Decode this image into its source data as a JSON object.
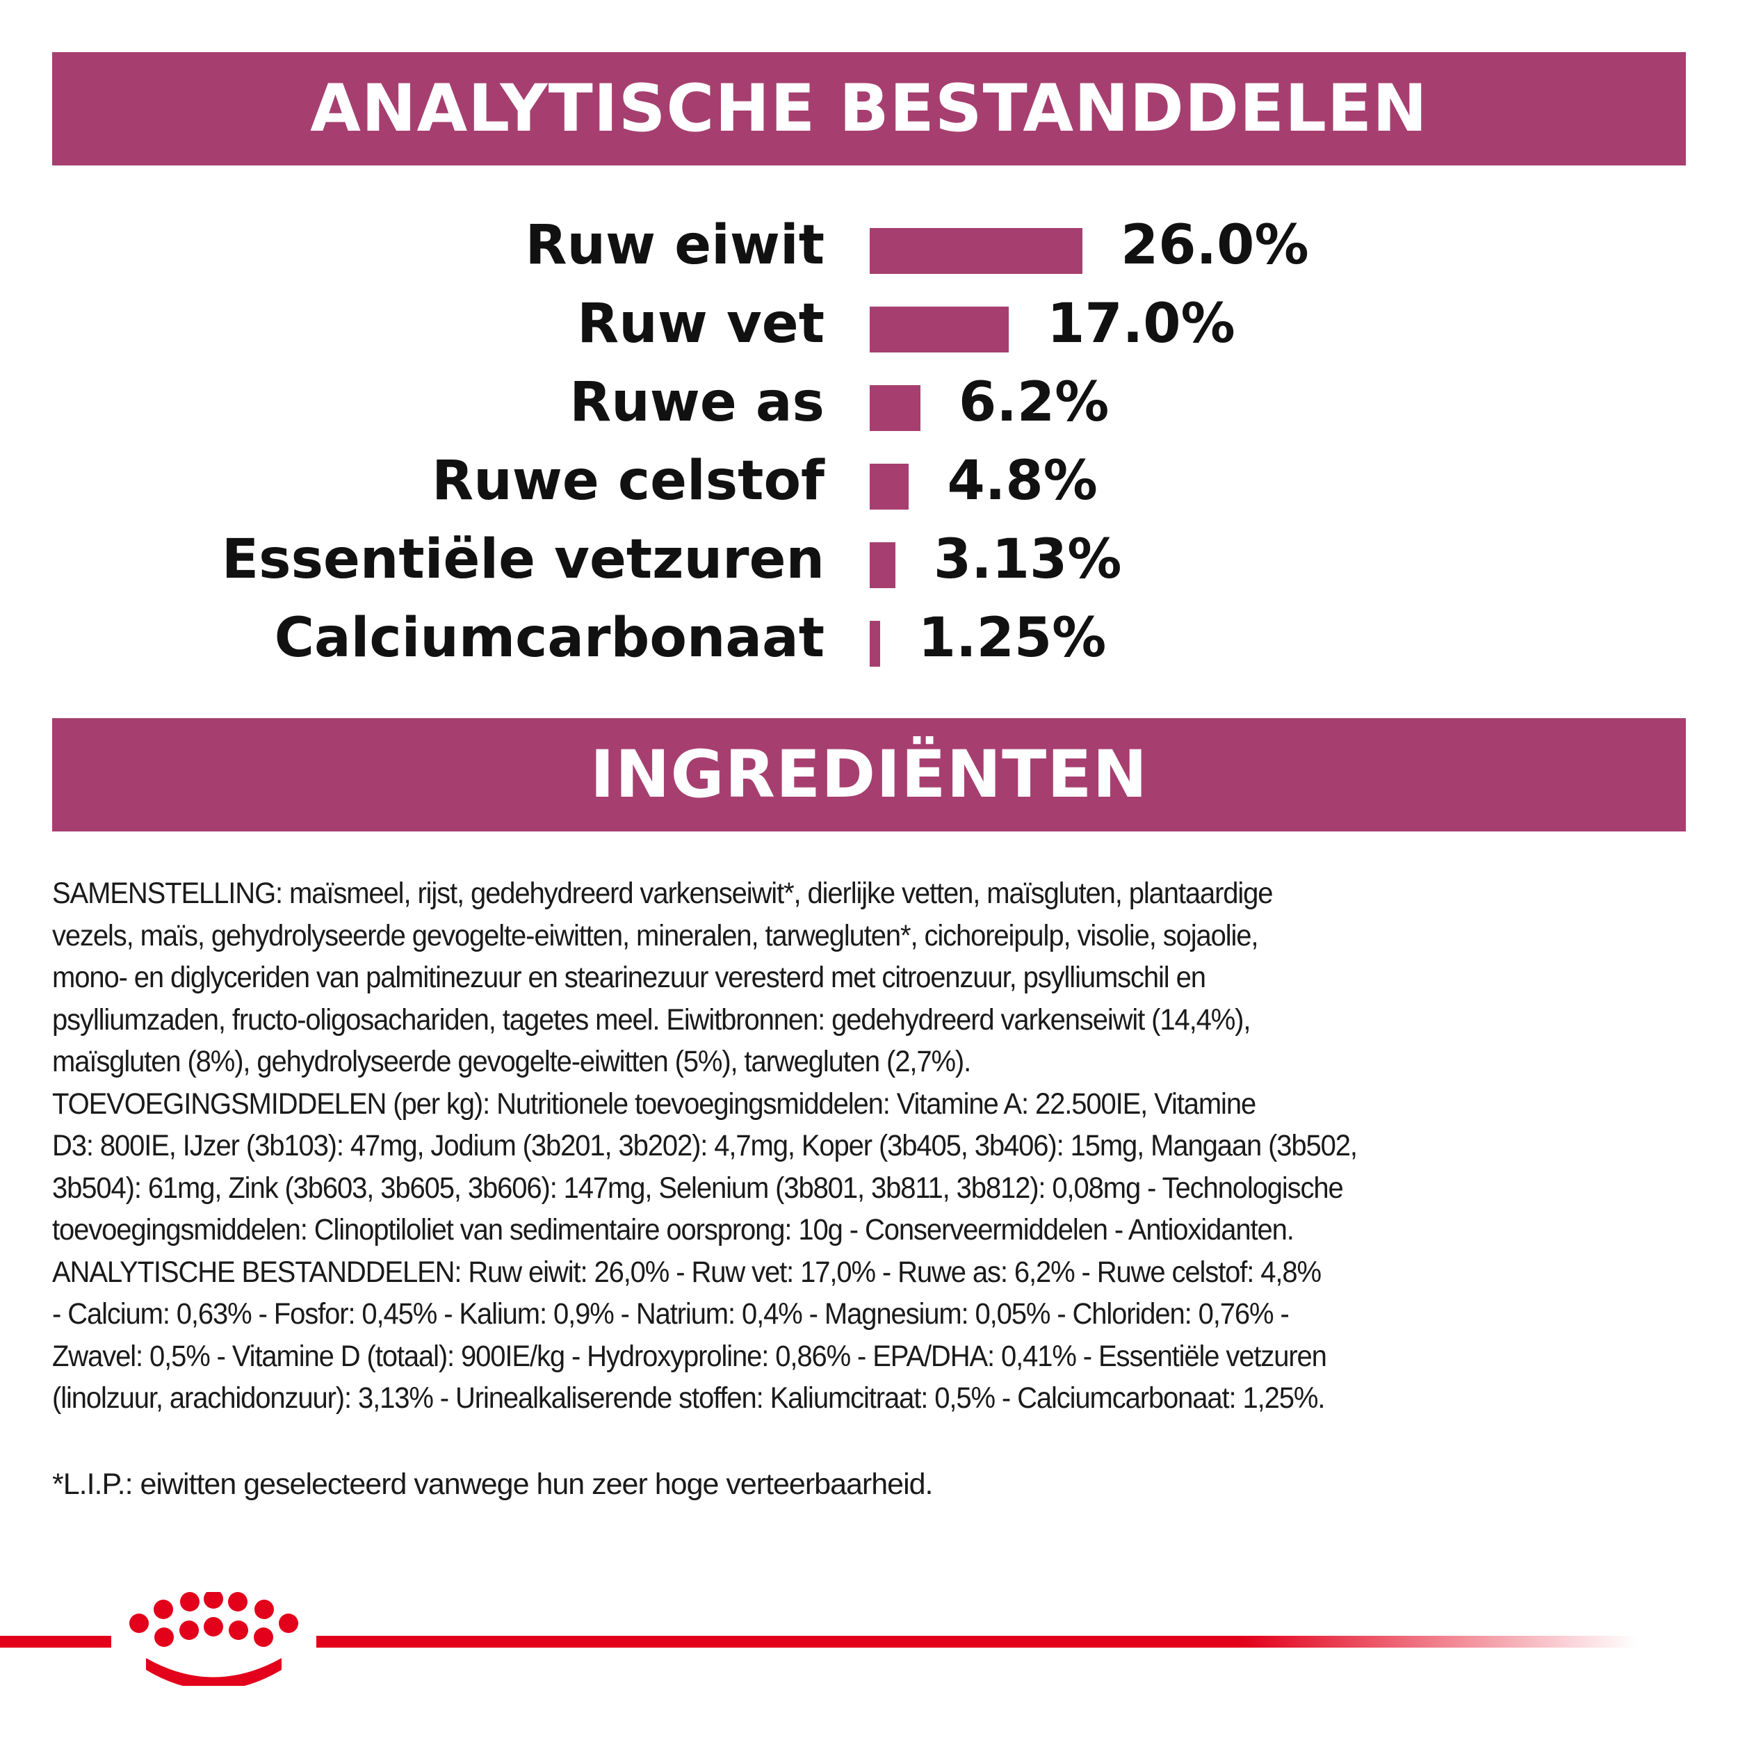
{
  "colors": {
    "banner": "#A63F70",
    "bar": "#A63F70",
    "brand_red": "#E2001A"
  },
  "analysis": {
    "title": "ANALYTISCHE BESTANDDELEN",
    "rows": [
      {
        "label": "Ruw eiwit",
        "value_text": "26.0%",
        "value": 26.0
      },
      {
        "label": "Ruw vet",
        "value_text": "17.0%",
        "value": 17.0
      },
      {
        "label": "Ruwe as",
        "value_text": "6.2%",
        "value": 6.2
      },
      {
        "label": "Ruwe celstof",
        "value_text": "4.8%",
        "value": 4.8
      },
      {
        "label": "Essentiële vetzuren",
        "value_text": "3.13%",
        "value": 3.13
      },
      {
        "label": "Calciumcarbonaat",
        "value_text": "1.25%",
        "value": 1.25
      }
    ]
  },
  "ingredients": {
    "title": "INGREDIËNTEN",
    "lines": [
      "SAMENSTELLING: maïsmeel, rijst, gedehydreerd varkenseiwit*, dierlijke vetten, maïsgluten, plantaardige",
      "vezels, maïs, gehydrolyseerde gevogelte-eiwitten, mineralen, tarwegluten*, cichoreipulp, visolie, sojaolie,",
      "mono- en diglyceriden van palmitinezuur en stearinezuur veresterd met citroenzuur, psylliumschil en",
      "psylliumzaden, fructo-oligosachariden, tagetes meel. Eiwitbronnen: gedehydreerd varkenseiwit (14,4%),",
      "maïsgluten (8%), gehydrolyseerde gevogelte-eiwitten (5%), tarwegluten (2,7%).",
      "TOEVOEGINGSMIDDELEN (per kg): Nutritionele toevoegingsmiddelen: Vitamine A: 22.500IE, Vitamine",
      "D3: 800IE, IJzer (3b103): 47mg, Jodium (3b201, 3b202): 4,7mg, Koper (3b405, 3b406): 15mg, Mangaan (3b502,",
      "3b504): 61mg, Zink (3b603, 3b605, 3b606): 147mg, Selenium (3b801, 3b811, 3b812): 0,08mg - Technologische",
      "toevoegingsmiddelen: Clinoptiloliet van sedimentaire oorsprong: 10g - Conserveermiddelen - Antioxidanten.",
      "ANALYTISCHE BESTANDDELEN: Ruw eiwit: 26,0% - Ruw vet: 17,0% - Ruwe as: 6,2% - Ruwe celstof: 4,8%",
      "- Calcium: 0,63% - Fosfor: 0,45% - Kalium: 0,9% - Natrium: 0,4% - Magnesium: 0,05% - Chloriden: 0,76% -",
      "Zwavel: 0,5% - Vitamine D (totaal): 900IE/kg - Hydroxyproline: 0,86% - EPA/DHA: 0,41% - Essentiële vetzuren",
      "(linolzuur, arachidonzuur): 3,13% - Urinealkaliserende stoffen: Kaliumcitraat: 0,5% - Calciumcarbonaat: 1,25%."
    ],
    "footnote": "*L.I.P.: eiwitten geselecteerd vanwege hun zeer hoge verteerbaarheid."
  },
  "footer": {
    "logo_icon": "royal-canin-crown-icon"
  }
}
